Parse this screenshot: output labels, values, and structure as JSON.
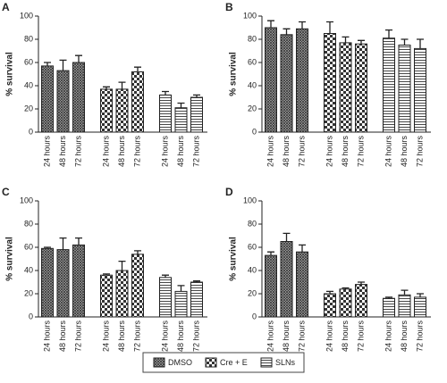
{
  "chart_data": [
    {
      "type": "bar",
      "panel": "A",
      "ylabel": "% survival",
      "categories": [
        "24 hours",
        "48 hours",
        "72 hours"
      ],
      "series": [
        {
          "name": "DMSO",
          "values": [
            57,
            53,
            60
          ],
          "errors": [
            3,
            9,
            6
          ]
        },
        {
          "name": "Cre + E",
          "values": [
            37,
            37,
            52
          ],
          "errors": [
            2,
            6,
            4
          ]
        },
        {
          "name": "SLNs",
          "values": [
            32,
            21,
            30
          ],
          "errors": [
            3,
            4,
            2
          ]
        }
      ],
      "ylim": [
        0,
        100
      ],
      "yticks": [
        0,
        20,
        40,
        60,
        80,
        100
      ]
    },
    {
      "type": "bar",
      "panel": "B",
      "ylabel": "% survival",
      "categories": [
        "24 hours",
        "48 hours",
        "72 hours"
      ],
      "series": [
        {
          "values": [
            90,
            84,
            89
          ],
          "errors": [
            6,
            5,
            6
          ]
        },
        {
          "values": [
            85,
            77,
            76
          ],
          "errors": [
            10,
            5,
            3
          ]
        },
        {
          "values": [
            81,
            75,
            72
          ],
          "errors": [
            7,
            5,
            8
          ]
        }
      ],
      "ylim": [
        0,
        100
      ],
      "yticks": [
        0,
        20,
        40,
        60,
        80,
        100
      ]
    },
    {
      "type": "bar",
      "panel": "C",
      "ylabel": "% survival",
      "categories": [
        "24 hours",
        "48 hours",
        "72 hours"
      ],
      "series": [
        {
          "values": [
            59,
            58,
            62
          ],
          "errors": [
            1,
            10,
            6
          ]
        },
        {
          "values": [
            36,
            40,
            54
          ],
          "errors": [
            1,
            8,
            3
          ]
        },
        {
          "values": [
            34,
            22,
            30
          ],
          "errors": [
            2,
            5,
            1
          ]
        }
      ],
      "ylim": [
        0,
        100
      ],
      "yticks": [
        0,
        20,
        40,
        60,
        80,
        100
      ]
    },
    {
      "type": "bar",
      "panel": "D",
      "ylabel": "% survival",
      "categories": [
        "24 hours",
        "48 hours",
        "72 hours"
      ],
      "series": [
        {
          "values": [
            53,
            65,
            56
          ],
          "errors": [
            3,
            7,
            6
          ]
        },
        {
          "values": [
            20,
            24,
            28
          ],
          "errors": [
            2,
            1,
            2
          ]
        },
        {
          "values": [
            16,
            19,
            17
          ],
          "errors": [
            1,
            4,
            3
          ]
        }
      ],
      "ylim": [
        0,
        100
      ],
      "yticks": [
        0,
        20,
        40,
        60,
        80,
        100
      ]
    }
  ]
}
